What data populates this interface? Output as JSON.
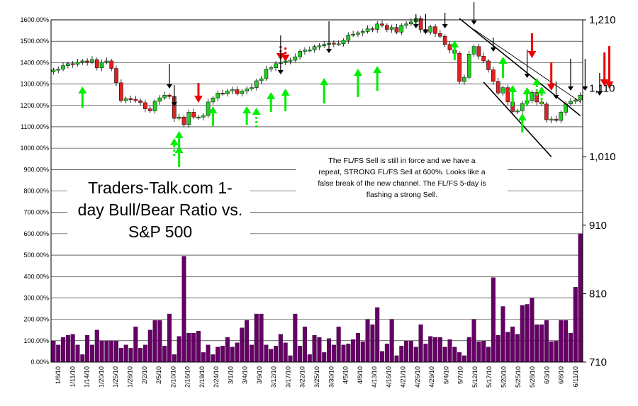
{
  "chart_data": {
    "type": "bar+candlestick",
    "title_lines": [
      "Traders-Talk.com 1-",
      "day Bull/Bear Ratio vs.",
      "S&P 500"
    ],
    "annotation_lines": [
      "The FL/FS Sell is still in force and we have a",
      "repeat, STRONG FL/FS Sell at 600%. Looks like a",
      "false break of the new channel. The FL/FS 5-day is",
      "flashing a strong Sell."
    ],
    "left_axis": {
      "min": 0,
      "max": 1600,
      "step": 100,
      "tick_labels": [
        "0.00%",
        "100.00%",
        "200.00%",
        "300.00%",
        "400.00%",
        "500.00%",
        "600.00%",
        "700.00%",
        "800.00%",
        "900.00%",
        "1000.00%",
        "1100.00%",
        "1200.00%",
        "1300.00%",
        "1400.00%",
        "1500.00%",
        "1600.00%"
      ]
    },
    "right_axis": {
      "min": 710,
      "max": 1210,
      "tick_values": [
        710,
        810,
        910,
        1010,
        1110,
        1210
      ],
      "tick_labels": [
        "710",
        "810",
        "910",
        "1,010",
        "1,110",
        "1,210"
      ]
    },
    "x_tick_labels": [
      "1/6/10",
      "1/11/10",
      "1/14/10",
      "1/20/10",
      "1/25/10",
      "1/28/10",
      "2/2/10",
      "2/5/10",
      "2/10/10",
      "2/16/10",
      "2/19/10",
      "2/24/10",
      "3/1/10",
      "3/4/10",
      "3/9/10",
      "3/12/10",
      "3/17/10",
      "3/22/10",
      "3/25/10",
      "3/30/10",
      "4/5/10",
      "4/8/10",
      "4/13/10",
      "4/16/10",
      "4/21/10",
      "4/26/10",
      "4/29/10",
      "5/4/10",
      "5/7/10",
      "5/12/10",
      "5/17/10",
      "5/20/10",
      "5/25/10",
      "5/28/10",
      "6/3/10",
      "6/8/10",
      "6/11/10"
    ],
    "bull_bear_ratio_pct": [
      100,
      80,
      115,
      125,
      130,
      80,
      35,
      125,
      80,
      150,
      100,
      100,
      100,
      100,
      65,
      80,
      65,
      165,
      65,
      80,
      150,
      195,
      195,
      75,
      225,
      35,
      120,
      495,
      135,
      135,
      145,
      45,
      80,
      35,
      70,
      75,
      115,
      70,
      90,
      160,
      195,
      80,
      225,
      225,
      80,
      60,
      75,
      130,
      90,
      30,
      225,
      75,
      165,
      35,
      125,
      115,
      45,
      110,
      80,
      165,
      80,
      85,
      105,
      135,
      95,
      200,
      175,
      255,
      50,
      85,
      200,
      30,
      75,
      100,
      100,
      70,
      175,
      85,
      120,
      115,
      115,
      70,
      105,
      70,
      45,
      30,
      115,
      200,
      95,
      100,
      70,
      395,
      125,
      260,
      140,
      165,
      130,
      265,
      270,
      300,
      175,
      175,
      195,
      95,
      100,
      195,
      195,
      135,
      350,
      600
    ],
    "sp500_close": [
      1137,
      1138,
      1143,
      1146,
      1145,
      1148,
      1150,
      1148,
      1152,
      1140,
      1148,
      1150,
      1139,
      1118,
      1092,
      1095,
      1094,
      1092,
      1089,
      1080,
      1077,
      1091,
      1096,
      1100,
      1098,
      1066,
      1068,
      1057,
      1075,
      1068,
      1068,
      1070,
      1090,
      1096,
      1103,
      1102,
      1106,
      1108,
      1102,
      1106,
      1109,
      1111,
      1121,
      1124,
      1138,
      1140,
      1146,
      1148,
      1150,
      1151,
      1156,
      1164,
      1166,
      1166,
      1171,
      1172,
      1174,
      1176,
      1175,
      1175,
      1180,
      1188,
      1189,
      1191,
      1193,
      1197,
      1196,
      1204,
      1202,
      1196,
      1199,
      1192,
      1202,
      1204,
      1207,
      1212,
      1196,
      1192,
      1200,
      1190,
      1186,
      1174,
      1166,
      1161,
      1120,
      1126,
      1160,
      1171,
      1157,
      1150,
      1137,
      1120,
      1103,
      1111,
      1090,
      1076,
      1077,
      1088,
      1092,
      1104,
      1090,
      1087,
      1064,
      1065,
      1063,
      1075,
      1087,
      1091,
      1093,
      1100
    ]
  }
}
